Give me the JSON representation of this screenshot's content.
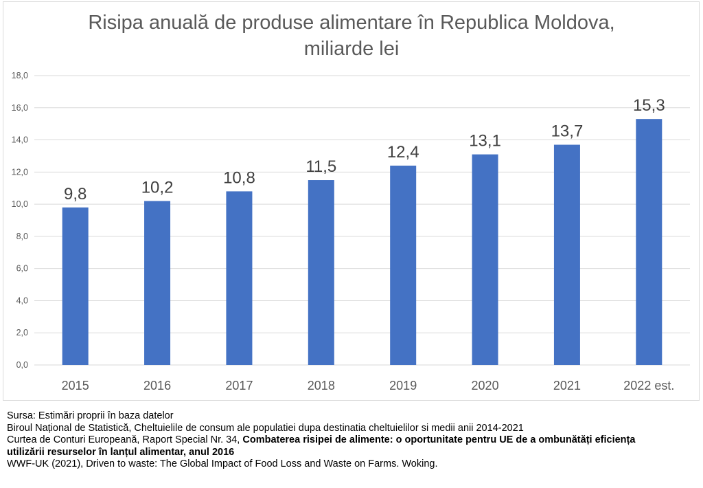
{
  "chart_data": {
    "type": "bar",
    "title_line1": "Risipa anuală de produse alimentare în Republica Moldova,",
    "title_line2": "miliarde lei",
    "categories": [
      "2015",
      "2016",
      "2017",
      "2018",
      "2019",
      "2020",
      "2021",
      "2022 est."
    ],
    "values": [
      9.8,
      10.2,
      10.8,
      11.5,
      12.4,
      13.1,
      13.7,
      15.3
    ],
    "data_labels": [
      "9,8",
      "10,2",
      "10,8",
      "11,5",
      "12,4",
      "13,1",
      "13,7",
      "15,3"
    ],
    "ylim": [
      0,
      18
    ],
    "yticks": [
      "0,0",
      "2,0",
      "4,0",
      "6,0",
      "8,0",
      "10,0",
      "12,0",
      "14,0",
      "16,0",
      "18,0"
    ],
    "xlabel": "",
    "ylabel": "",
    "grid": true,
    "legend": "none",
    "bar_color": "#4472c4",
    "grid_color": "#d9d9d9"
  },
  "notes": {
    "line1": "Sursa: Estimări proprii în baza datelor",
    "line2": "Biroul Național de Statistică, Cheltuielile de consum ale populatiei dupa destinatia cheltuielilor si medii anii 2014-2021",
    "line3_normal": "Curtea de Conturi Europeană, Raport Special Nr. 34, ",
    "line3_bold": "Combaterea risipei de alimente: o oportunitate pentru UE de a ombunătăți eficiența",
    "line4_bold": "utilizării resurselor în lanțul alimentar, anul 2016",
    "line5": "WWF-UK (2021), Driven to waste: The Global Impact of Food Loss and Waste on Farms. Woking."
  }
}
